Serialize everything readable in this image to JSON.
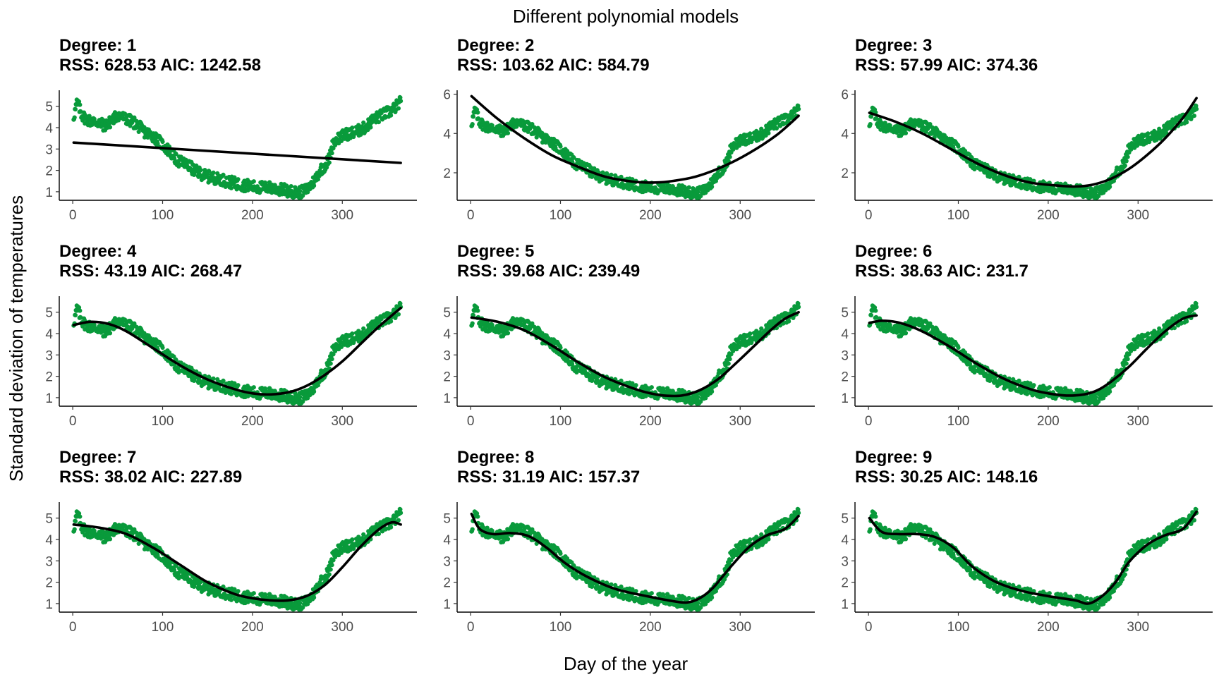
{
  "chart_data": {
    "type": "scatter",
    "title": "Different polynomial models",
    "xlabel": "Day of the year",
    "ylabel": "Standard deviation of temperatures",
    "xlim": [
      -15,
      383
    ],
    "x_ticks": [
      0,
      100,
      200,
      300
    ],
    "grid": false,
    "point_color": "#099a3b",
    "line_color": "#000000",
    "observations": {
      "x": [
        1,
        5,
        10,
        15,
        20,
        25,
        30,
        35,
        40,
        45,
        50,
        55,
        60,
        65,
        70,
        75,
        80,
        85,
        90,
        95,
        100,
        105,
        110,
        115,
        120,
        125,
        130,
        135,
        140,
        145,
        150,
        155,
        160,
        165,
        170,
        175,
        180,
        185,
        190,
        195,
        200,
        205,
        210,
        215,
        220,
        225,
        230,
        235,
        240,
        245,
        250,
        255,
        260,
        265,
        270,
        275,
        280,
        285,
        290,
        295,
        300,
        305,
        310,
        315,
        320,
        325,
        330,
        335,
        340,
        345,
        350,
        355,
        360,
        365
      ],
      "y": [
        4.5,
        5.2,
        4.6,
        4.4,
        4.3,
        4.3,
        4.2,
        4.1,
        4.2,
        4.4,
        4.6,
        4.5,
        4.4,
        4.3,
        4.2,
        4.0,
        3.8,
        3.7,
        3.6,
        3.4,
        3.2,
        3.0,
        2.8,
        2.5,
        2.4,
        2.3,
        2.2,
        2.0,
        1.9,
        1.8,
        1.7,
        1.7,
        1.6,
        1.6,
        1.5,
        1.45,
        1.4,
        1.35,
        1.3,
        1.3,
        1.25,
        1.2,
        1.2,
        1.2,
        1.2,
        1.15,
        1.1,
        1.1,
        1.0,
        1.0,
        0.95,
        1.0,
        1.1,
        1.3,
        1.6,
        2.0,
        2.2,
        2.5,
        3.3,
        3.5,
        3.6,
        3.7,
        3.75,
        3.8,
        3.9,
        4.0,
        4.2,
        4.4,
        4.5,
        4.6,
        4.7,
        4.8,
        5.0,
        5.2
      ]
    },
    "panels": [
      {
        "degree_label": "Degree: 1",
        "stats_label": "RSS: 628.53 AIC: 1242.58",
        "ylim": [
          0.6,
          5.75
        ],
        "y_ticks": [
          1,
          2,
          3,
          4,
          5
        ],
        "fit": {
          "x": [
            1,
            365
          ],
          "y": [
            3.3,
            2.35
          ]
        }
      },
      {
        "degree_label": "Degree: 2",
        "stats_label": "RSS: 103.62 AIC: 584.79",
        "ylim": [
          0.6,
          6.2
        ],
        "y_ticks": [
          2,
          4,
          6
        ],
        "fit": {
          "x": [
            1,
            30,
            60,
            90,
            120,
            150,
            180,
            200,
            220,
            250,
            280,
            310,
            340,
            365
          ],
          "y": [
            5.9,
            4.75,
            3.75,
            2.9,
            2.3,
            1.8,
            1.55,
            1.5,
            1.55,
            1.8,
            2.3,
            3.0,
            3.9,
            4.9
          ]
        }
      },
      {
        "degree_label": "Degree: 3",
        "stats_label": "RSS: 57.99 AIC: 374.36",
        "ylim": [
          0.6,
          6.2
        ],
        "y_ticks": [
          2,
          4,
          6
        ],
        "fit": {
          "x": [
            1,
            30,
            60,
            90,
            120,
            150,
            180,
            210,
            230,
            250,
            270,
            290,
            310,
            330,
            350,
            365
          ],
          "y": [
            5.05,
            4.6,
            4.0,
            3.25,
            2.5,
            1.9,
            1.5,
            1.35,
            1.3,
            1.4,
            1.7,
            2.2,
            2.9,
            3.75,
            4.8,
            5.8
          ]
        }
      },
      {
        "degree_label": "Degree: 4",
        "stats_label": "RSS: 43.19 AIC: 268.47",
        "ylim": [
          0.6,
          5.75
        ],
        "y_ticks": [
          1,
          2,
          3,
          4,
          5
        ],
        "fit": {
          "x": [
            1,
            20,
            40,
            60,
            90,
            120,
            150,
            180,
            200,
            220,
            240,
            260,
            280,
            300,
            320,
            340,
            365
          ],
          "y": [
            4.4,
            4.55,
            4.45,
            4.1,
            3.3,
            2.5,
            1.85,
            1.4,
            1.2,
            1.15,
            1.25,
            1.55,
            2.05,
            2.7,
            3.5,
            4.3,
            5.2
          ]
        }
      },
      {
        "degree_label": "Degree: 5",
        "stats_label": "RSS: 39.68 AIC: 239.49",
        "ylim": [
          0.6,
          5.75
        ],
        "y_ticks": [
          1,
          2,
          3,
          4,
          5
        ],
        "fit": {
          "x": [
            1,
            30,
            60,
            90,
            120,
            150,
            180,
            200,
            215,
            235,
            255,
            275,
            295,
            315,
            335,
            350,
            365
          ],
          "y": [
            4.75,
            4.55,
            4.15,
            3.45,
            2.65,
            1.95,
            1.45,
            1.2,
            1.1,
            1.1,
            1.35,
            1.85,
            2.6,
            3.4,
            4.2,
            4.7,
            5.0
          ]
        }
      },
      {
        "degree_label": "Degree: 6",
        "stats_label": "RSS: 38.63 AIC: 231.7",
        "ylim": [
          0.6,
          5.75
        ],
        "y_ticks": [
          1,
          2,
          3,
          4,
          5
        ],
        "fit": {
          "x": [
            1,
            15,
            35,
            60,
            90,
            120,
            150,
            180,
            200,
            220,
            240,
            255,
            270,
            290,
            310,
            330,
            350,
            365
          ],
          "y": [
            4.5,
            4.6,
            4.5,
            4.1,
            3.4,
            2.6,
            1.9,
            1.4,
            1.2,
            1.1,
            1.15,
            1.35,
            1.75,
            2.45,
            3.3,
            4.1,
            4.7,
            4.85
          ]
        }
      },
      {
        "degree_label": "Degree: 7",
        "stats_label": "RSS: 38.02 AIC: 227.89",
        "ylim": [
          0.6,
          5.75
        ],
        "y_ticks": [
          1,
          2,
          3,
          4,
          5
        ],
        "fit": {
          "x": [
            1,
            30,
            60,
            90,
            120,
            150,
            180,
            200,
            220,
            240,
            260,
            280,
            300,
            320,
            340,
            355,
            365
          ],
          "y": [
            4.7,
            4.55,
            4.25,
            3.6,
            2.8,
            2.0,
            1.45,
            1.25,
            1.15,
            1.15,
            1.35,
            1.85,
            2.7,
            3.65,
            4.45,
            4.8,
            4.7
          ]
        }
      },
      {
        "degree_label": "Degree: 8",
        "stats_label": "RSS: 31.19 AIC: 157.37",
        "ylim": [
          0.6,
          5.75
        ],
        "y_ticks": [
          1,
          2,
          3,
          4,
          5
        ],
        "fit": {
          "x": [
            1,
            10,
            25,
            45,
            65,
            85,
            105,
            130,
            160,
            190,
            220,
            240,
            255,
            270,
            290,
            310,
            330,
            350,
            365
          ],
          "y": [
            5.2,
            4.5,
            4.25,
            4.3,
            4.15,
            3.6,
            2.9,
            2.25,
            1.7,
            1.4,
            1.15,
            1.05,
            1.25,
            1.75,
            2.75,
            3.65,
            4.2,
            4.5,
            5.1
          ]
        }
      },
      {
        "degree_label": "Degree: 9",
        "stats_label": "RSS: 30.25 AIC: 148.16",
        "ylim": [
          0.6,
          5.75
        ],
        "y_ticks": [
          1,
          2,
          3,
          4,
          5
        ],
        "fit": {
          "x": [
            1,
            15,
            35,
            55,
            75,
            95,
            115,
            140,
            170,
            200,
            230,
            245,
            260,
            275,
            290,
            310,
            330,
            350,
            365
          ],
          "y": [
            5.0,
            4.35,
            4.25,
            4.25,
            4.1,
            3.6,
            2.75,
            2.05,
            1.6,
            1.35,
            1.15,
            1.0,
            1.35,
            2.0,
            2.95,
            3.75,
            4.2,
            4.5,
            5.3
          ]
        }
      }
    ]
  }
}
